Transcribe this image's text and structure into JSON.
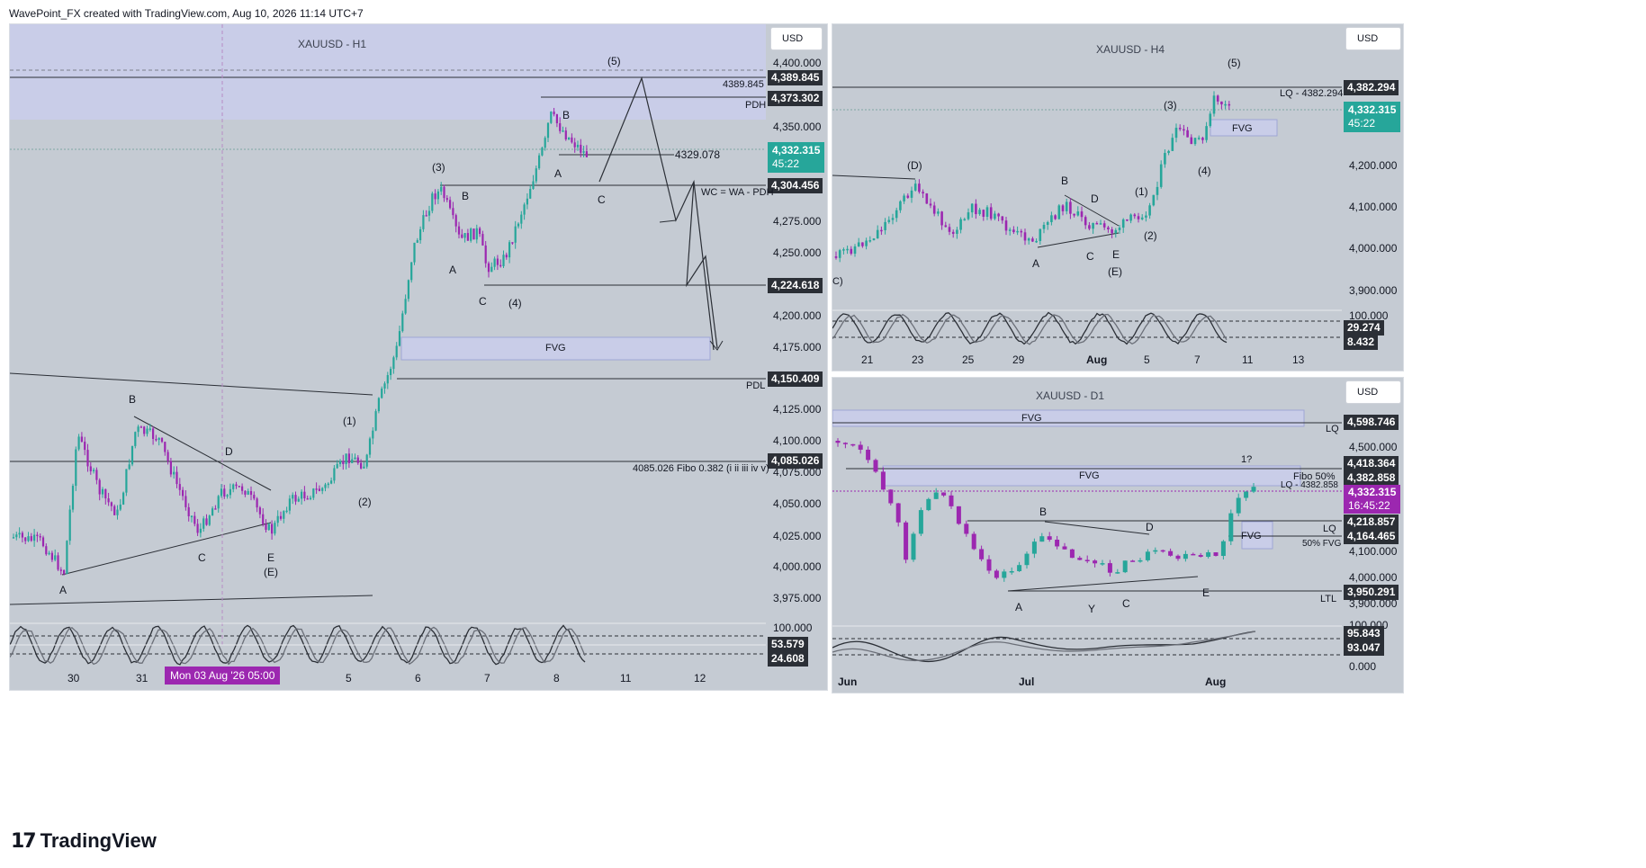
{
  "header": {
    "text": "WavePoint_FX created with TradingView.com, Aug 10, 2026 11:14 UTC+7"
  },
  "brand": {
    "text": "TradingView",
    "icon": "tradingview-logo-icon"
  },
  "colors": {
    "bull": "#26a69a",
    "bear": "#9c27b0",
    "panel_bg": "#c5cbd3",
    "zone": "#c9cde8"
  },
  "h1": {
    "title": "XAUUSD - H1",
    "currency": "USD",
    "axis": [
      "4,400.000",
      "4,350.000",
      "4,275.000",
      "4,250.000",
      "4,200.000",
      "4,175.000",
      "4,125.000",
      "4,100.000",
      "4,075.000",
      "4,050.000",
      "4,025.000",
      "4,000.000",
      "3,975.000"
    ],
    "tags": {
      "p1": "4,389.845",
      "p2": "4,373.302",
      "price": "4,332.315",
      "timer": "45:22",
      "p3": "4,304.456",
      "p4": "4,224.618",
      "p5": "4,150.409",
      "p6": "4,085.026"
    },
    "osc": {
      "top": "100.000",
      "v1": "53.579",
      "v2": "24.608"
    },
    "xaxis": [
      "30",
      "31",
      "5",
      "6",
      "7",
      "8",
      "11",
      "12"
    ],
    "date_label": "Mon 03 Aug '26   05:00",
    "notes": {
      "n1": "4389.845",
      "n2": "PDH",
      "n3": "4329.078",
      "n4": "WC = WA - PDH",
      "n5": "PDL",
      "n6": "4085.026 Fibo 0.382 (i ii iii iv v)",
      "fvg": "FVG"
    },
    "waves": {
      "w5": "(5)",
      "w3": "(3)",
      "wB1": "B",
      "wA1": "A",
      "wC1": "C",
      "w4": "(4)",
      "wB2": "B",
      "wA2": "A",
      "wC2": "C",
      "w1": "(1)",
      "w2": "(2)",
      "wB3": "B",
      "wD": "D",
      "wC3": "C",
      "wA3": "A",
      "wE": "E",
      "wEE": "(E)"
    }
  },
  "h4": {
    "title": "XAUUSD - H4",
    "currency": "USD",
    "axis": [
      "4,200.000",
      "4,100.000",
      "4,000.000",
      "3,900.000",
      "100.000"
    ],
    "tags": {
      "p1": "4,382.294",
      "price": "4,332.315",
      "timer": "45:22",
      "o1": "29.274",
      "o2": "8.432"
    },
    "xaxis": [
      "21",
      "23",
      "25",
      "29",
      "Aug",
      "5",
      "7",
      "11",
      "13"
    ],
    "notes": {
      "lq": "LQ - 4382.294",
      "fvg": "FVG",
      "c": "C)"
    },
    "waves": {
      "w5": "(5)",
      "w3": "(3)",
      "w4": "(4)",
      "w1": "(1)",
      "w2": "(2)",
      "wD1": "(D)",
      "wB": "B",
      "wD": "D",
      "wA": "A",
      "wC": "C",
      "wE": "E",
      "wEE": "(E)"
    }
  },
  "d1": {
    "title": "XAUUSD - D1",
    "currency": "USD",
    "axis": [
      "4,500.000",
      "4,100.000",
      "4,000.000",
      "3,900.000",
      "100.000",
      "0.000"
    ],
    "tags": {
      "p1": "4,598.746",
      "p2": "4,418.364",
      "p3": "4,382.858",
      "price": "4,332.315",
      "timer": "16:45:22",
      "p4": "4,218.857",
      "p5": "4,164.465",
      "p6": "3,950.291",
      "o1": "95.843",
      "o2": "93.047"
    },
    "xaxis": [
      "Jun",
      "Jul",
      "Aug"
    ],
    "notes": {
      "fvg1": "FVG",
      "lq1": "LQ",
      "fvg2": "FVG",
      "fibo": "Fibo 50%",
      "lq2": "LQ - 4382.858",
      "q": "1?",
      "lq3": "LQ",
      "fvg3": "FVG",
      "fvg50": "50% FVG",
      "ltl": "LTL"
    },
    "waves": {
      "wB": "B",
      "wD": "D",
      "wA": "A",
      "wY": "Y",
      "wC": "C",
      "wE": "E"
    }
  }
}
